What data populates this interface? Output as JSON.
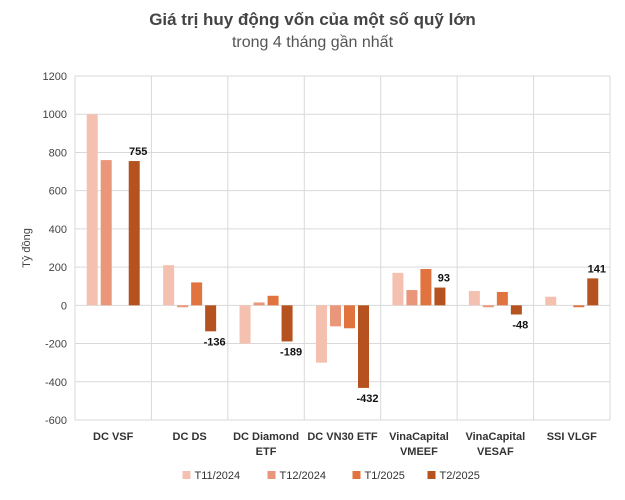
{
  "chart_data": {
    "type": "bar",
    "title": "Giá trị huy động vốn của một số quỹ lớn",
    "subtitle": "trong 4 tháng gần nhất",
    "xlabel": "",
    "ylabel": "Tỷ đồng",
    "ylim": [
      -600,
      1200
    ],
    "yticks": [
      1200,
      1000,
      800,
      600,
      400,
      200,
      0,
      -200,
      -400,
      -600
    ],
    "grid": true,
    "legend_position": "bottom",
    "categories": [
      [
        "DC VSF"
      ],
      [
        "DC DS"
      ],
      [
        "DC Diamond",
        "ETF"
      ],
      [
        "DC VN30 ETF"
      ],
      [
        "VinaCapital",
        "VMEEF"
      ],
      [
        "VinaCapital",
        "VESAF"
      ],
      [
        "SSI VLGF"
      ]
    ],
    "series": [
      {
        "name": "T11/2024",
        "color": "#f4c0b0",
        "values": [
          1000,
          210,
          -200,
          -300,
          170,
          75,
          45
        ]
      },
      {
        "name": "T12/2024",
        "color": "#e9967a",
        "values": [
          760,
          -10,
          15,
          -110,
          80,
          -10,
          0
        ]
      },
      {
        "name": "T1/2025",
        "color": "#e1733f",
        "values": [
          0,
          120,
          50,
          -120,
          190,
          70,
          -10
        ]
      },
      {
        "name": "T2/2025",
        "color": "#b5521f",
        "values": [
          755,
          -136,
          -189,
          -432,
          93,
          -48,
          141
        ]
      }
    ],
    "data_labels": [
      {
        "category_index": 0,
        "series_index": 3,
        "text": "755"
      },
      {
        "category_index": 1,
        "series_index": 3,
        "text": "-136"
      },
      {
        "category_index": 2,
        "series_index": 3,
        "text": "-189"
      },
      {
        "category_index": 3,
        "series_index": 3,
        "text": "-432"
      },
      {
        "category_index": 4,
        "series_index": 3,
        "text": "93"
      },
      {
        "category_index": 5,
        "series_index": 3,
        "text": "-48"
      },
      {
        "category_index": 6,
        "series_index": 3,
        "text": "141"
      }
    ]
  }
}
